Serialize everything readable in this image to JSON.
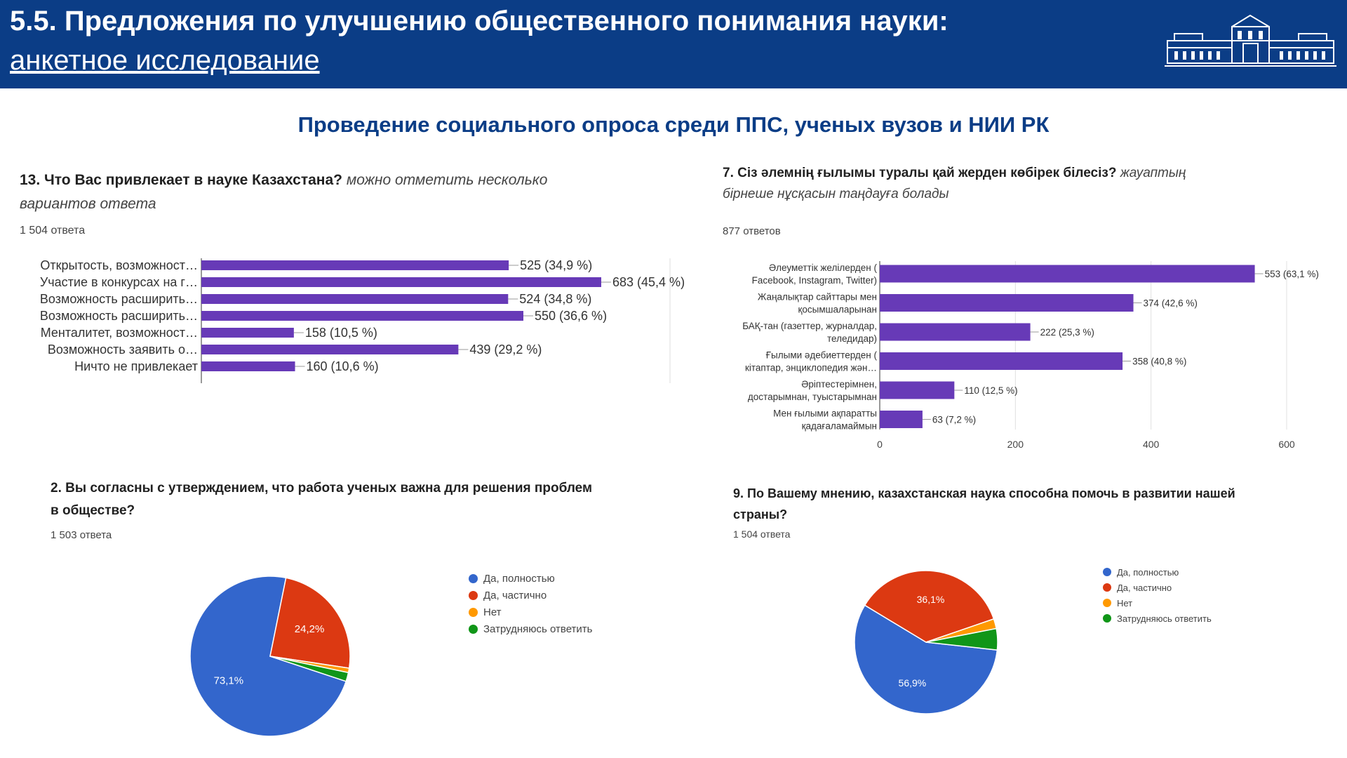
{
  "header": {
    "title": "5.5. Предложения по улучшению общественного понимания науки:",
    "subtitle": "анкетное исследование"
  },
  "subtitle": "Проведение социального опроса среди ППС, ученых вузов и НИИ РК",
  "colors": {
    "header_bg": "#0b3d86",
    "bar": "#673ab7",
    "blue": "#3366cc",
    "red": "#dc3912",
    "orange": "#ff9900",
    "green": "#109618"
  },
  "q13": {
    "question": "13. Что Вас привлекает в науке Казахстана?",
    "hint": "можно отметить несколько вариантов ответа",
    "count": "1 504 ответа"
  },
  "q7": {
    "question": "7. Сіз әлемнің ғылымы туралы қай жерден көбірек білесіз?",
    "hint": "жауаптың бірнеше нұсқасын таңдауға болады",
    "count": "877 ответов"
  },
  "q2": {
    "question": "2. Вы согласны с утверждением, что работа ученых важна для решения проблем в обществе?",
    "count": "1 503 ответа",
    "legend": [
      "Да, полностью",
      "Да, частично",
      "Нет",
      "Затрудняюсь ответить"
    ]
  },
  "q9": {
    "question": "9. По Вашему мнению, казахстанская наука способна помочь в развитии нашей страны?",
    "count": "1 504 ответа",
    "legend": [
      "Да, полностью",
      "Да, частично",
      "Нет",
      "Затрудняюсь ответить"
    ]
  },
  "chart_data": [
    {
      "type": "bar",
      "orientation": "horizontal",
      "categories": [
        "Открытость, возможност…",
        "Участие в конкурсах на г…",
        "Возможность расширить…",
        "Возможность расширить…",
        "Менталитет, возможност…",
        "Возможность заявить о…",
        "Ничто не привлекает"
      ],
      "values": [
        525,
        683,
        524,
        550,
        158,
        439,
        160
      ],
      "data_labels": [
        "525 (34,9 %)",
        "683 (45,4 %)",
        "524 (34,8 %)",
        "550 (36,6 %)",
        "158 (10,5 %)",
        "439 (29,2 %)",
        "160 (10,6 %)"
      ],
      "xlim": [
        0,
        683
      ]
    },
    {
      "type": "bar",
      "orientation": "horizontal",
      "categories": [
        [
          "Әлеуметтік желілерден (",
          "Facebook, Instagram, Twitter)"
        ],
        [
          "Жаңалықтар сайттары мен",
          "қосымшаларынан"
        ],
        [
          "БАҚ-тан (газеттер, журналдар,",
          "теледидар)"
        ],
        [
          "Ғылыми әдебиеттерден (",
          "кітаптар, энциклопедия жән…"
        ],
        [
          "Әріптестерімнен,",
          "достарымнан, туыстарымнан"
        ],
        [
          "Мен ғылыми ақпаратты",
          "қадағаламаймын"
        ]
      ],
      "values": [
        553,
        374,
        222,
        358,
        110,
        63
      ],
      "data_labels": [
        "553 (63,1 %)",
        "374 (42,6 %)",
        "222 (25,3 %)",
        "358 (40,8 %)",
        "110 (12,5 %)",
        "63 (7,2 %)"
      ],
      "xticks": [
        "0",
        "200",
        "400",
        "600"
      ],
      "xlim": [
        0,
        600
      ],
      "grid": true
    },
    {
      "type": "pie",
      "labels": [
        "Да, полностью",
        "Да, частично",
        "Нет",
        "Затрудняюсь ответить"
      ],
      "values": [
        73.1,
        24.2,
        0.9,
        1.8
      ],
      "data_labels": [
        "73,1%",
        "24,2%",
        "",
        ""
      ],
      "legend": "right"
    },
    {
      "type": "pie",
      "labels": [
        "Да, полностью",
        "Да, частично",
        "Нет",
        "Затрудняюсь ответить"
      ],
      "values": [
        56.9,
        36.1,
        2.2,
        4.8
      ],
      "data_labels": [
        "56,9%",
        "36,1%",
        "",
        ""
      ],
      "legend": "right"
    }
  ]
}
